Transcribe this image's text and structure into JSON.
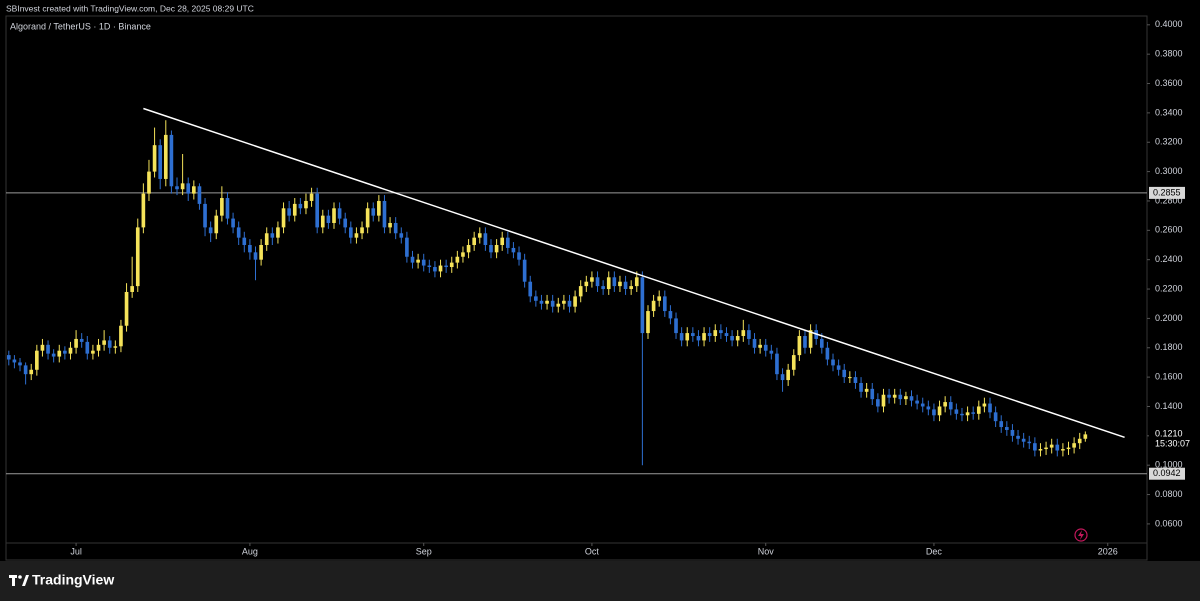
{
  "header": "SBInvest created with TradingView.com, Dec 28, 2025 08:29 UTC",
  "footer_logo": "TradingView",
  "chart_data": {
    "type": "candlestick",
    "title": "Algorand / TetherUS · 1D · Binance",
    "up_color": "#f5e35a",
    "down_color": "#2e6fd1",
    "ylim": [
      0.047,
      0.406
    ],
    "yticks": [
      {
        "value": 0.06,
        "label": "0.0600"
      },
      {
        "value": 0.08,
        "label": "0.0800"
      },
      {
        "value": 0.1,
        "label": "0.1000"
      },
      {
        "value": 0.12,
        "label": "0.1200"
      },
      {
        "value": 0.14,
        "label": "0.1400"
      },
      {
        "value": 0.16,
        "label": "0.1600"
      },
      {
        "value": 0.18,
        "label": "0.1800"
      },
      {
        "value": 0.2,
        "label": "0.2000"
      },
      {
        "value": 0.22,
        "label": "0.2200"
      },
      {
        "value": 0.24,
        "label": "0.2400"
      },
      {
        "value": 0.26,
        "label": "0.2600"
      },
      {
        "value": 0.28,
        "label": "0.2800"
      },
      {
        "value": 0.3,
        "label": "0.3000"
      },
      {
        "value": 0.32,
        "label": "0.3200"
      },
      {
        "value": 0.34,
        "label": "0.3400"
      },
      {
        "value": 0.36,
        "label": "0.3600"
      },
      {
        "value": 0.38,
        "label": "0.3800"
      },
      {
        "value": 0.4,
        "label": "0.4000"
      }
    ],
    "xlim": [
      -0.5,
      203
    ],
    "xticks": [
      {
        "value": 12,
        "label": "Jul"
      },
      {
        "value": 43,
        "label": "Aug"
      },
      {
        "value": 74,
        "label": "Sep"
      },
      {
        "value": 104,
        "label": "Oct"
      },
      {
        "value": 135,
        "label": "Nov"
      },
      {
        "value": 165,
        "label": "Dec"
      },
      {
        "value": 196,
        "label": "2026"
      }
    ],
    "levels": [
      0.2855,
      0.0942
    ],
    "last_price": {
      "value": 0.121,
      "label": "0.1210",
      "countdown": "15:30:07"
    },
    "trendline": {
      "x": [
        24,
        199
      ],
      "y": [
        0.343,
        0.119
      ]
    },
    "candles": [
      [
        0.175,
        0.178,
        0.168,
        0.172
      ],
      [
        0.172,
        0.175,
        0.166,
        0.17
      ],
      [
        0.17,
        0.173,
        0.164,
        0.168
      ],
      [
        0.168,
        0.17,
        0.155,
        0.162
      ],
      [
        0.162,
        0.169,
        0.158,
        0.165
      ],
      [
        0.165,
        0.182,
        0.161,
        0.178
      ],
      [
        0.178,
        0.186,
        0.174,
        0.182
      ],
      [
        0.182,
        0.185,
        0.172,
        0.176
      ],
      [
        0.176,
        0.179,
        0.17,
        0.174
      ],
      [
        0.174,
        0.182,
        0.17,
        0.178
      ],
      [
        0.178,
        0.181,
        0.172,
        0.176
      ],
      [
        0.176,
        0.184,
        0.172,
        0.18
      ],
      [
        0.18,
        0.192,
        0.176,
        0.186
      ],
      [
        0.186,
        0.19,
        0.18,
        0.184
      ],
      [
        0.184,
        0.188,
        0.172,
        0.176
      ],
      [
        0.176,
        0.182,
        0.172,
        0.178
      ],
      [
        0.178,
        0.186,
        0.174,
        0.182
      ],
      [
        0.182,
        0.192,
        0.178,
        0.185
      ],
      [
        0.185,
        0.188,
        0.176,
        0.18
      ],
      [
        0.18,
        0.185,
        0.176,
        0.181
      ],
      [
        0.181,
        0.199,
        0.177,
        0.195
      ],
      [
        0.195,
        0.224,
        0.191,
        0.218
      ],
      [
        0.218,
        0.242,
        0.214,
        0.222
      ],
      [
        0.222,
        0.268,
        0.218,
        0.262
      ],
      [
        0.262,
        0.292,
        0.258,
        0.285
      ],
      [
        0.285,
        0.308,
        0.28,
        0.3
      ],
      [
        0.3,
        0.33,
        0.296,
        0.318
      ],
      [
        0.318,
        0.322,
        0.288,
        0.295
      ],
      [
        0.295,
        0.335,
        0.29,
        0.325
      ],
      [
        0.325,
        0.328,
        0.285,
        0.29
      ],
      [
        0.29,
        0.296,
        0.284,
        0.288
      ],
      [
        0.288,
        0.312,
        0.284,
        0.292
      ],
      [
        0.292,
        0.296,
        0.28,
        0.285
      ],
      [
        0.285,
        0.294,
        0.281,
        0.29
      ],
      [
        0.29,
        0.292,
        0.274,
        0.278
      ],
      [
        0.278,
        0.282,
        0.256,
        0.262
      ],
      [
        0.262,
        0.266,
        0.252,
        0.258
      ],
      [
        0.258,
        0.274,
        0.254,
        0.27
      ],
      [
        0.27,
        0.29,
        0.266,
        0.282
      ],
      [
        0.282,
        0.286,
        0.264,
        0.268
      ],
      [
        0.268,
        0.272,
        0.258,
        0.262
      ],
      [
        0.262,
        0.266,
        0.25,
        0.255
      ],
      [
        0.255,
        0.259,
        0.245,
        0.25
      ],
      [
        0.25,
        0.254,
        0.24,
        0.245
      ],
      [
        0.245,
        0.249,
        0.226,
        0.24
      ],
      [
        0.24,
        0.254,
        0.236,
        0.25
      ],
      [
        0.25,
        0.262,
        0.246,
        0.258
      ],
      [
        0.258,
        0.262,
        0.25,
        0.255
      ],
      [
        0.255,
        0.266,
        0.251,
        0.262
      ],
      [
        0.262,
        0.279,
        0.258,
        0.275
      ],
      [
        0.275,
        0.28,
        0.266,
        0.27
      ],
      [
        0.27,
        0.282,
        0.266,
        0.278
      ],
      [
        0.278,
        0.282,
        0.271,
        0.275
      ],
      [
        0.275,
        0.285,
        0.271,
        0.28
      ],
      [
        0.28,
        0.289,
        0.276,
        0.285
      ],
      [
        0.285,
        0.289,
        0.258,
        0.262
      ],
      [
        0.262,
        0.274,
        0.258,
        0.27
      ],
      [
        0.27,
        0.274,
        0.261,
        0.265
      ],
      [
        0.265,
        0.279,
        0.261,
        0.275
      ],
      [
        0.275,
        0.279,
        0.264,
        0.268
      ],
      [
        0.268,
        0.272,
        0.258,
        0.262
      ],
      [
        0.262,
        0.266,
        0.251,
        0.255
      ],
      [
        0.255,
        0.262,
        0.251,
        0.258
      ],
      [
        0.258,
        0.266,
        0.254,
        0.262
      ],
      [
        0.262,
        0.279,
        0.258,
        0.275
      ],
      [
        0.275,
        0.279,
        0.266,
        0.27
      ],
      [
        0.27,
        0.284,
        0.266,
        0.28
      ],
      [
        0.28,
        0.284,
        0.258,
        0.262
      ],
      [
        0.262,
        0.269,
        0.258,
        0.265
      ],
      [
        0.265,
        0.269,
        0.254,
        0.258
      ],
      [
        0.258,
        0.262,
        0.251,
        0.255
      ],
      [
        0.255,
        0.259,
        0.238,
        0.242
      ],
      [
        0.242,
        0.246,
        0.234,
        0.238
      ],
      [
        0.238,
        0.244,
        0.234,
        0.24
      ],
      [
        0.24,
        0.244,
        0.232,
        0.236
      ],
      [
        0.236,
        0.24,
        0.231,
        0.235
      ],
      [
        0.235,
        0.239,
        0.228,
        0.232
      ],
      [
        0.232,
        0.24,
        0.228,
        0.236
      ],
      [
        0.236,
        0.24,
        0.231,
        0.235
      ],
      [
        0.235,
        0.242,
        0.231,
        0.238
      ],
      [
        0.238,
        0.246,
        0.234,
        0.242
      ],
      [
        0.242,
        0.249,
        0.238,
        0.245
      ],
      [
        0.245,
        0.254,
        0.241,
        0.25
      ],
      [
        0.25,
        0.259,
        0.246,
        0.255
      ],
      [
        0.255,
        0.262,
        0.251,
        0.258
      ],
      [
        0.258,
        0.262,
        0.246,
        0.25
      ],
      [
        0.25,
        0.254,
        0.241,
        0.245
      ],
      [
        0.245,
        0.254,
        0.241,
        0.25
      ],
      [
        0.25,
        0.259,
        0.246,
        0.255
      ],
      [
        0.255,
        0.259,
        0.244,
        0.248
      ],
      [
        0.248,
        0.252,
        0.241,
        0.245
      ],
      [
        0.245,
        0.249,
        0.236,
        0.24
      ],
      [
        0.24,
        0.244,
        0.221,
        0.225
      ],
      [
        0.225,
        0.229,
        0.211,
        0.215
      ],
      [
        0.215,
        0.219,
        0.208,
        0.212
      ],
      [
        0.212,
        0.216,
        0.206,
        0.21
      ],
      [
        0.21,
        0.216,
        0.206,
        0.212
      ],
      [
        0.212,
        0.216,
        0.204,
        0.208
      ],
      [
        0.208,
        0.214,
        0.204,
        0.21
      ],
      [
        0.21,
        0.216,
        0.206,
        0.212
      ],
      [
        0.212,
        0.216,
        0.204,
        0.208
      ],
      [
        0.208,
        0.219,
        0.204,
        0.215
      ],
      [
        0.215,
        0.226,
        0.211,
        0.222
      ],
      [
        0.222,
        0.229,
        0.218,
        0.225
      ],
      [
        0.225,
        0.232,
        0.221,
        0.228
      ],
      [
        0.228,
        0.232,
        0.218,
        0.222
      ],
      [
        0.222,
        0.226,
        0.216,
        0.22
      ],
      [
        0.22,
        0.232,
        0.216,
        0.228
      ],
      [
        0.228,
        0.232,
        0.218,
        0.222
      ],
      [
        0.222,
        0.229,
        0.218,
        0.225
      ],
      [
        0.225,
        0.229,
        0.216,
        0.22
      ],
      [
        0.22,
        0.226,
        0.216,
        0.222
      ],
      [
        0.222,
        0.232,
        0.218,
        0.228
      ],
      [
        0.228,
        0.232,
        0.1,
        0.19
      ],
      [
        0.19,
        0.209,
        0.186,
        0.205
      ],
      [
        0.205,
        0.216,
        0.201,
        0.212
      ],
      [
        0.212,
        0.219,
        0.208,
        0.215
      ],
      [
        0.215,
        0.219,
        0.201,
        0.205
      ],
      [
        0.205,
        0.209,
        0.196,
        0.2
      ],
      [
        0.2,
        0.204,
        0.186,
        0.19
      ],
      [
        0.19,
        0.194,
        0.181,
        0.185
      ],
      [
        0.185,
        0.194,
        0.181,
        0.19
      ],
      [
        0.19,
        0.194,
        0.184,
        0.188
      ],
      [
        0.188,
        0.192,
        0.181,
        0.185
      ],
      [
        0.185,
        0.194,
        0.181,
        0.19
      ],
      [
        0.19,
        0.194,
        0.184,
        0.188
      ],
      [
        0.188,
        0.196,
        0.184,
        0.192
      ],
      [
        0.192,
        0.196,
        0.186,
        0.19
      ],
      [
        0.19,
        0.194,
        0.184,
        0.188
      ],
      [
        0.188,
        0.192,
        0.181,
        0.185
      ],
      [
        0.185,
        0.192,
        0.181,
        0.188
      ],
      [
        0.188,
        0.199,
        0.184,
        0.192
      ],
      [
        0.192,
        0.196,
        0.182,
        0.186
      ],
      [
        0.186,
        0.19,
        0.176,
        0.18
      ],
      [
        0.18,
        0.186,
        0.176,
        0.182
      ],
      [
        0.182,
        0.186,
        0.174,
        0.178
      ],
      [
        0.178,
        0.182,
        0.172,
        0.176
      ],
      [
        0.176,
        0.18,
        0.158,
        0.162
      ],
      [
        0.162,
        0.166,
        0.15,
        0.158
      ],
      [
        0.158,
        0.169,
        0.154,
        0.165
      ],
      [
        0.165,
        0.179,
        0.161,
        0.175
      ],
      [
        0.175,
        0.192,
        0.171,
        0.188
      ],
      [
        0.188,
        0.192,
        0.176,
        0.18
      ],
      [
        0.18,
        0.196,
        0.176,
        0.192
      ],
      [
        0.192,
        0.196,
        0.182,
        0.186
      ],
      [
        0.186,
        0.19,
        0.176,
        0.18
      ],
      [
        0.18,
        0.184,
        0.168,
        0.172
      ],
      [
        0.172,
        0.176,
        0.164,
        0.168
      ],
      [
        0.168,
        0.172,
        0.161,
        0.165
      ],
      [
        0.165,
        0.169,
        0.156,
        0.16
      ],
      [
        0.16,
        0.164,
        0.156,
        0.16
      ],
      [
        0.16,
        0.164,
        0.152,
        0.156
      ],
      [
        0.156,
        0.16,
        0.146,
        0.15
      ],
      [
        0.15,
        0.156,
        0.146,
        0.152
      ],
      [
        0.152,
        0.156,
        0.141,
        0.145
      ],
      [
        0.145,
        0.149,
        0.136,
        0.14
      ],
      [
        0.14,
        0.152,
        0.136,
        0.148
      ],
      [
        0.148,
        0.152,
        0.142,
        0.146
      ],
      [
        0.146,
        0.152,
        0.142,
        0.148
      ],
      [
        0.148,
        0.152,
        0.141,
        0.145
      ],
      [
        0.145,
        0.15,
        0.141,
        0.147
      ],
      [
        0.147,
        0.151,
        0.14,
        0.144
      ],
      [
        0.144,
        0.148,
        0.138,
        0.142
      ],
      [
        0.142,
        0.146,
        0.136,
        0.14
      ],
      [
        0.14,
        0.144,
        0.134,
        0.138
      ],
      [
        0.138,
        0.142,
        0.13,
        0.134
      ],
      [
        0.134,
        0.144,
        0.13,
        0.14
      ],
      [
        0.14,
        0.147,
        0.136,
        0.143
      ],
      [
        0.143,
        0.147,
        0.134,
        0.138
      ],
      [
        0.138,
        0.142,
        0.131,
        0.135
      ],
      [
        0.135,
        0.139,
        0.13,
        0.134
      ],
      [
        0.134,
        0.14,
        0.13,
        0.136
      ],
      [
        0.136,
        0.14,
        0.131,
        0.135
      ],
      [
        0.135,
        0.144,
        0.131,
        0.14
      ],
      [
        0.14,
        0.146,
        0.136,
        0.142
      ],
      [
        0.142,
        0.146,
        0.132,
        0.136
      ],
      [
        0.136,
        0.14,
        0.126,
        0.13
      ],
      [
        0.13,
        0.134,
        0.122,
        0.126
      ],
      [
        0.126,
        0.13,
        0.12,
        0.124
      ],
      [
        0.124,
        0.128,
        0.116,
        0.12
      ],
      [
        0.12,
        0.124,
        0.114,
        0.118
      ],
      [
        0.118,
        0.122,
        0.112,
        0.116
      ],
      [
        0.116,
        0.12,
        0.111,
        0.115
      ],
      [
        0.115,
        0.119,
        0.106,
        0.11
      ],
      [
        0.11,
        0.115,
        0.106,
        0.111
      ],
      [
        0.111,
        0.116,
        0.107,
        0.112
      ],
      [
        0.112,
        0.118,
        0.108,
        0.114
      ],
      [
        0.114,
        0.118,
        0.106,
        0.11
      ],
      [
        0.11,
        0.115,
        0.106,
        0.111
      ],
      [
        0.111,
        0.116,
        0.107,
        0.112
      ],
      [
        0.112,
        0.119,
        0.108,
        0.115
      ],
      [
        0.115,
        0.122,
        0.111,
        0.118
      ],
      [
        0.118,
        0.123,
        0.116,
        0.121
      ]
    ]
  }
}
